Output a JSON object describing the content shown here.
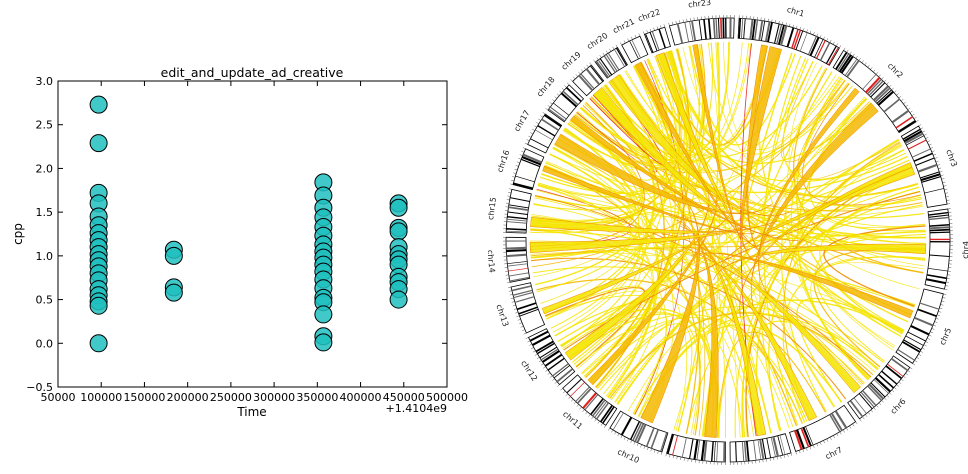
{
  "chart_data": [
    {
      "type": "scatter",
      "title": "edit_and_update_ad_creative",
      "xlabel": "Time",
      "ylabel": "cpp",
      "x_offset_label": "+1.4104e9",
      "xlim": [
        50000,
        500000
      ],
      "ylim": [
        -0.5,
        3.0
      ],
      "x_ticks": [
        50000,
        100000,
        150000,
        200000,
        250000,
        300000,
        350000,
        400000,
        450000,
        500000
      ],
      "x_tick_labels": [
        "50000",
        "100000",
        "150000",
        "200000",
        "250000",
        "300000",
        "350000",
        "400000",
        "450000",
        "500000"
      ],
      "y_ticks": [
        -0.5,
        0.0,
        0.5,
        1.0,
        1.5,
        2.0,
        2.5,
        3.0
      ],
      "y_tick_labels": [
        "−0.5",
        "0.0",
        "0.5",
        "1.0",
        "1.5",
        "2.0",
        "2.5",
        "3.0"
      ],
      "grid": false,
      "marker_color": "#20c0c0",
      "points": [
        {
          "x": 97000,
          "y": 2.73
        },
        {
          "x": 97000,
          "y": 2.29
        },
        {
          "x": 97000,
          "y": 1.72
        },
        {
          "x": 97000,
          "y": 1.6
        },
        {
          "x": 97000,
          "y": 1.45
        },
        {
          "x": 97000,
          "y": 1.35
        },
        {
          "x": 97000,
          "y": 1.26
        },
        {
          "x": 97000,
          "y": 1.18
        },
        {
          "x": 97000,
          "y": 1.1
        },
        {
          "x": 97000,
          "y": 1.02
        },
        {
          "x": 97000,
          "y": 0.95
        },
        {
          "x": 97000,
          "y": 0.88
        },
        {
          "x": 97000,
          "y": 0.8
        },
        {
          "x": 97000,
          "y": 0.72
        },
        {
          "x": 97000,
          "y": 0.62
        },
        {
          "x": 97000,
          "y": 0.55
        },
        {
          "x": 97000,
          "y": 0.48
        },
        {
          "x": 97000,
          "y": 0.43
        },
        {
          "x": 97000,
          "y": 0.0
        },
        {
          "x": 184000,
          "y": 1.07
        },
        {
          "x": 184000,
          "y": 1.0
        },
        {
          "x": 184000,
          "y": 0.64
        },
        {
          "x": 184000,
          "y": 0.58
        },
        {
          "x": 357000,
          "y": 1.84
        },
        {
          "x": 357000,
          "y": 1.69
        },
        {
          "x": 357000,
          "y": 1.55
        },
        {
          "x": 357000,
          "y": 1.44
        },
        {
          "x": 357000,
          "y": 1.33
        },
        {
          "x": 357000,
          "y": 1.23
        },
        {
          "x": 357000,
          "y": 1.13
        },
        {
          "x": 357000,
          "y": 1.05
        },
        {
          "x": 357000,
          "y": 0.98
        },
        {
          "x": 357000,
          "y": 0.9
        },
        {
          "x": 357000,
          "y": 0.82
        },
        {
          "x": 357000,
          "y": 0.73
        },
        {
          "x": 357000,
          "y": 0.63
        },
        {
          "x": 357000,
          "y": 0.52
        },
        {
          "x": 357000,
          "y": 0.47
        },
        {
          "x": 357000,
          "y": 0.33
        },
        {
          "x": 357000,
          "y": 0.08
        },
        {
          "x": 357000,
          "y": 0.01
        },
        {
          "x": 444000,
          "y": 1.6
        },
        {
          "x": 444000,
          "y": 1.55
        },
        {
          "x": 444000,
          "y": 1.32
        },
        {
          "x": 444000,
          "y": 1.28
        },
        {
          "x": 444000,
          "y": 1.1
        },
        {
          "x": 444000,
          "y": 1.02
        },
        {
          "x": 444000,
          "y": 0.96
        },
        {
          "x": 444000,
          "y": 0.9
        },
        {
          "x": 444000,
          "y": 0.76
        },
        {
          "x": 444000,
          "y": 0.7
        },
        {
          "x": 444000,
          "y": 0.62
        },
        {
          "x": 444000,
          "y": 0.5
        }
      ]
    },
    {
      "type": "circos",
      "chromosomes": [
        "chr1",
        "chr2",
        "chr3",
        "chr4",
        "chr5",
        "chr6",
        "chr7",
        "chr8",
        "chr9",
        "chr10",
        "chr11",
        "chr12",
        "chr13",
        "chr14",
        "chr15",
        "chr16",
        "chr17",
        "chr18",
        "chr19",
        "chr20",
        "chr21",
        "chr22",
        "chr23"
      ],
      "chromosome_sizes": [
        250,
        243,
        198,
        191,
        181,
        171,
        159,
        146,
        141,
        136,
        135,
        134,
        115,
        107,
        103,
        90,
        83,
        78,
        59,
        63,
        48,
        51,
        155
      ],
      "link_colors": {
        "low": "#f5e400",
        "mid": "#f5b800",
        "high": "#f08a00",
        "accent": "#e52020"
      }
    }
  ]
}
